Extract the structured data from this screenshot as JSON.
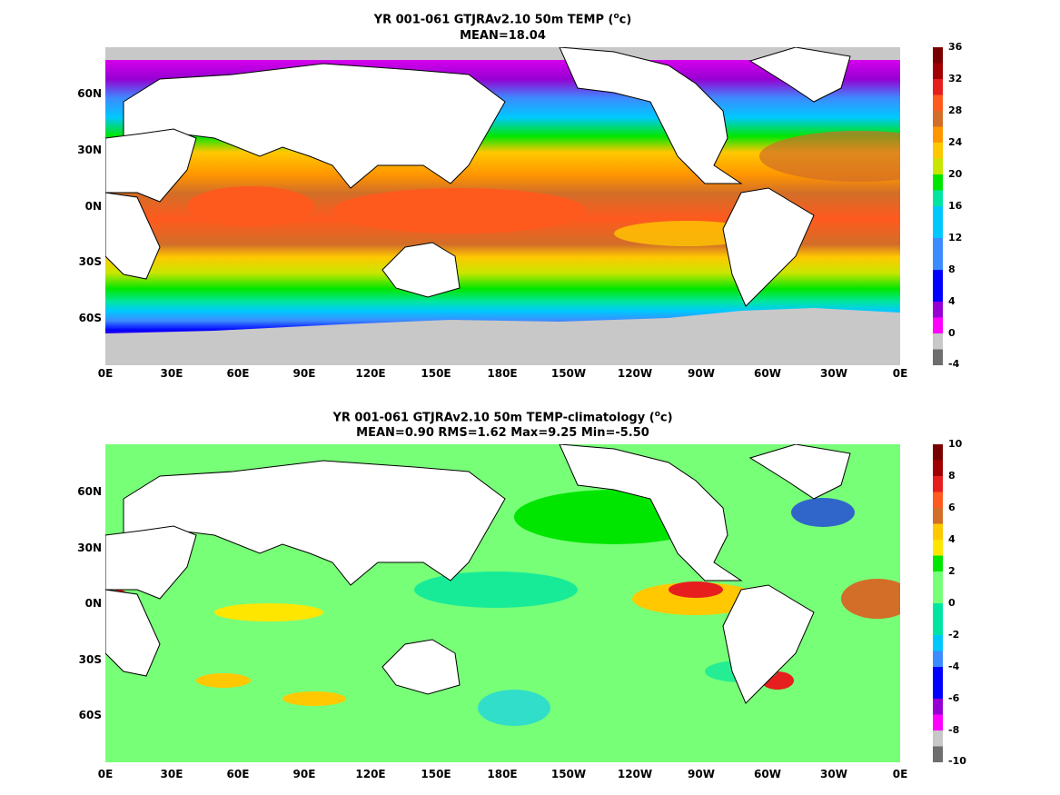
{
  "panels": [
    {
      "title_line1_pre": "YR 001-061 GTJRAv2.10 50m TEMP (",
      "title_unit_sup": "o",
      "title_unit_post": "c)",
      "title_line2": "MEAN=18.04",
      "colorbar_labels": [
        "36",
        "32",
        "28",
        "24",
        "20",
        "16",
        "12",
        "8",
        "4",
        "0",
        "-4"
      ]
    },
    {
      "title_line1_pre": "YR 001-061 GTJRAv2.10 50m TEMP-climatology (",
      "title_unit_sup": "o",
      "title_unit_post": "c)",
      "title_line2": "MEAN=0.90   RMS=1.62   Max=9.25   Min=-5.50",
      "colorbar_labels": [
        "10",
        "8",
        "6",
        "4",
        "2",
        "0",
        "-2",
        "-4",
        "-6",
        "-8",
        "-10"
      ]
    }
  ],
  "lat_labels": [
    "60N",
    "30N",
    "0N",
    "30S",
    "60S"
  ],
  "lon_labels": [
    "0E",
    "30E",
    "60E",
    "90E",
    "120E",
    "150E",
    "180E",
    "150W",
    "120W",
    "90W",
    "60W",
    "30W",
    "0E"
  ],
  "colors": {
    "panel1_scale": [
      "#6e6e6e",
      "#c8c8c8",
      "#ff00ff",
      "#9600d2",
      "#0000ff",
      "#3c8cff",
      "#00c8ff",
      "#00e6a0",
      "#00e600",
      "#c8e600",
      "#ffc800",
      "#ff9600",
      "#d26e28",
      "#ff5a1e",
      "#e61e1e",
      "#a00000",
      "#780000"
    ],
    "panel2_scale": [
      "#6e6e6e",
      "#c8c8c8",
      "#ff00ff",
      "#9600d2",
      "#0000ff",
      "#3c8cff",
      "#00c8ff",
      "#00e6a0",
      "#78ff78",
      "#00e600",
      "#ffe600",
      "#ffc800",
      "#d26e28",
      "#ff5a1e",
      "#e61e1e",
      "#a00000",
      "#780000"
    ],
    "land": "#ffffff",
    "ice": "#c8c8c8"
  }
}
